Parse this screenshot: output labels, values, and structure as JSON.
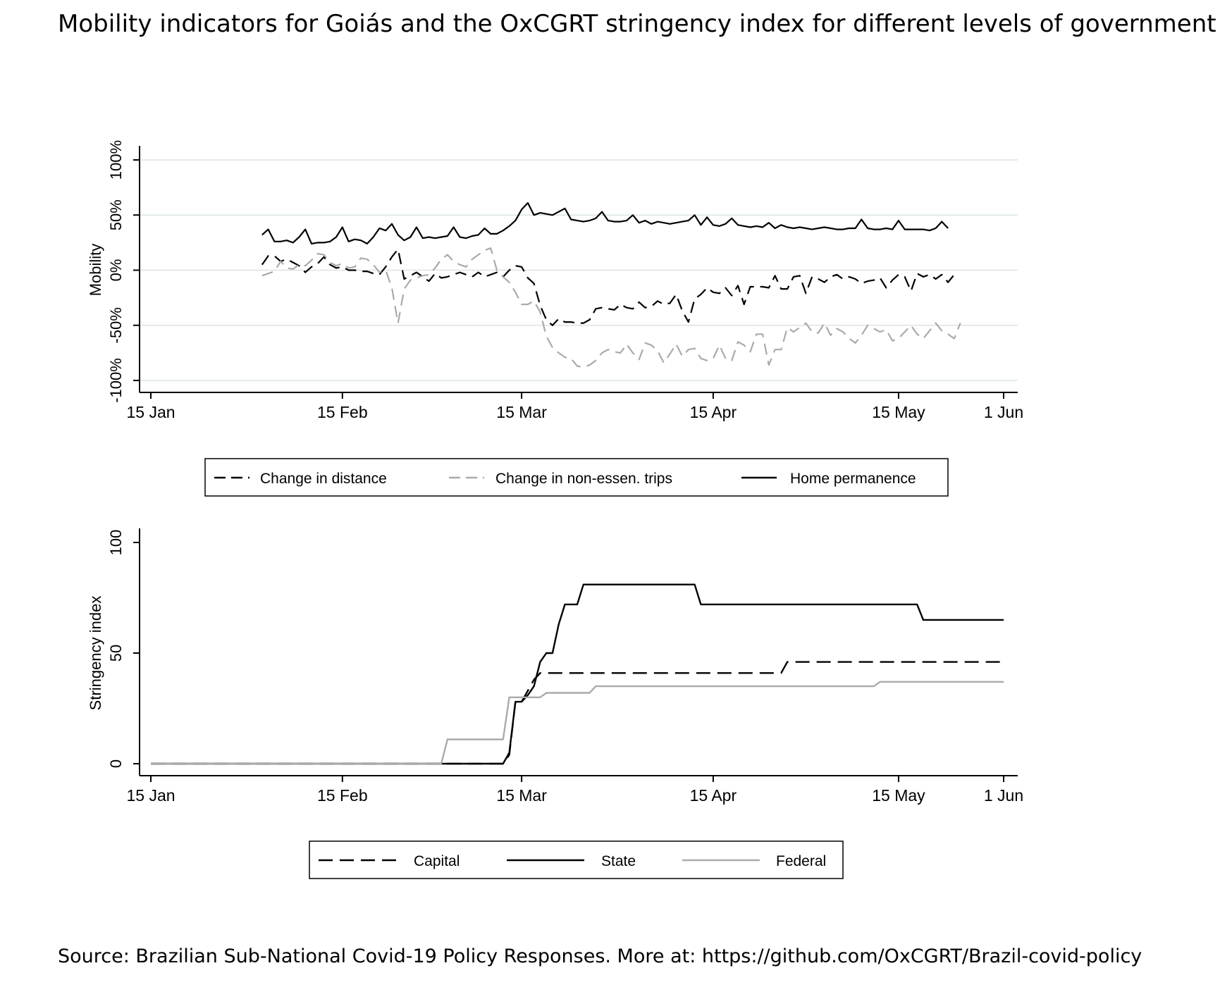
{
  "title": "Mobility indicators for Goiás and the OxCGRT stringency index for different levels of government",
  "source": "Source: Brazilian Sub-National Covid-19 Policy Responses. More at: https://github.com/OxCGRT/Brazil-covid-policy",
  "chart_data": [
    {
      "type": "line",
      "ylabel": "Mobility",
      "ylim": [
        -100,
        100
      ],
      "yticks": [
        -100,
        -50,
        0,
        50,
        100
      ],
      "ytick_labels": [
        "-100%",
        "-50%",
        "0%",
        "50%",
        "100%"
      ],
      "xlim": [
        "2020-01-15",
        "2020-06-01"
      ],
      "xticks": [
        "2020-01-15",
        "2020-02-15",
        "2020-03-15",
        "2020-04-15",
        "2020-05-15",
        "2020-06-01"
      ],
      "xtick_labels": [
        "15 Jan",
        "15 Feb",
        "15 Mar",
        "15 Apr",
        "15 May",
        "1 Jun"
      ],
      "grid": true,
      "legend": "bottom",
      "series": [
        {
          "name": "Change in distance",
          "color": "#000000",
          "style": "dashed",
          "start": "2020-02-02",
          "values": [
            5,
            13,
            13,
            8,
            10,
            7,
            4,
            -2,
            3,
            6,
            12,
            5,
            2,
            3,
            0,
            0,
            -1,
            -1,
            -3,
            -4,
            3,
            12,
            19,
            -8,
            -5,
            -2,
            -6,
            -10,
            -3,
            -7,
            -6,
            -4,
            -2,
            -4,
            -6,
            -2,
            -6,
            -4,
            -2,
            -6,
            0,
            4,
            3,
            -7,
            -12,
            -32,
            -45,
            -50,
            -44,
            -47,
            -47,
            -48,
            -48,
            -45,
            -35,
            -34,
            -35,
            -36,
            -31,
            -34,
            -35,
            -29,
            -34,
            -33,
            -28,
            -31,
            -30,
            -22,
            -37,
            -47,
            -26,
            -22,
            -16,
            -20,
            -21,
            -16,
            -23,
            -14,
            -31,
            -15,
            -15,
            -15,
            -16,
            -5,
            -17,
            -17,
            -6,
            -5,
            -21,
            -6,
            -8,
            -11,
            -6,
            -4,
            -8,
            -6,
            -8,
            -12,
            -10,
            -9,
            -7,
            -16,
            -9,
            -4,
            -6,
            -19,
            -3,
            -6,
            -4,
            -8,
            -4,
            -11,
            -4
          ]
        },
        {
          "name": "Change in non-essen. trips",
          "color": "#aaaaaa",
          "style": "dashed",
          "start": "2020-02-02",
          "values": [
            -5,
            -3,
            -1,
            8,
            2,
            1,
            5,
            4,
            9,
            15,
            14,
            7,
            4,
            6,
            2,
            3,
            11,
            10,
            5,
            -2,
            0,
            -16,
            -48,
            -17,
            -9,
            -7,
            -5,
            -4,
            2,
            10,
            14,
            8,
            5,
            3,
            10,
            14,
            18,
            20,
            0,
            -6,
            -11,
            -20,
            -31,
            -31,
            -28,
            -38,
            -60,
            -70,
            -75,
            -79,
            -80,
            -87,
            -88,
            -86,
            -82,
            -75,
            -72,
            -74,
            -75,
            -67,
            -75,
            -81,
            -66,
            -68,
            -73,
            -84,
            -76,
            -67,
            -78,
            -72,
            -71,
            -80,
            -82,
            -80,
            -68,
            -80,
            -82,
            -65,
            -68,
            -74,
            -58,
            -58,
            -86,
            -72,
            -72,
            -52,
            -56,
            -52,
            -48,
            -56,
            -57,
            -48,
            -59,
            -53,
            -56,
            -62,
            -66,
            -59,
            -50,
            -53,
            -56,
            -54,
            -64,
            -62,
            -56,
            -50,
            -58,
            -62,
            -55,
            -48,
            -55,
            -58,
            -62,
            -48
          ]
        },
        {
          "name": "Home permanence",
          "color": "#000000",
          "style": "solid",
          "start": "2020-02-02",
          "values": [
            32,
            37,
            26,
            26,
            27,
            25,
            30,
            37,
            24,
            25,
            25,
            26,
            30,
            39,
            26,
            28,
            27,
            24,
            30,
            38,
            36,
            42,
            32,
            27,
            30,
            39,
            29,
            30,
            29,
            30,
            31,
            39,
            30,
            29,
            31,
            32,
            38,
            33,
            33,
            36,
            40,
            45,
            55,
            61,
            50,
            52,
            51,
            50,
            53,
            56,
            46,
            45,
            44,
            45,
            47,
            53,
            45,
            44,
            44,
            45,
            50,
            43,
            45,
            42,
            44,
            43,
            42,
            43,
            44,
            45,
            50,
            41,
            48,
            41,
            40,
            42,
            47,
            41,
            40,
            39,
            40,
            39,
            43,
            38,
            41,
            39,
            38,
            39,
            38,
            37,
            38,
            39,
            38,
            37,
            37,
            38,
            38,
            46,
            38,
            37,
            37,
            38,
            37,
            45,
            37,
            37,
            37,
            37,
            36,
            38,
            44,
            38
          ]
        }
      ]
    },
    {
      "type": "line",
      "ylabel": "Stringency index",
      "ylim": [
        0,
        100
      ],
      "yticks": [
        0,
        50,
        100
      ],
      "ytick_labels": [
        "0",
        "50",
        "100"
      ],
      "xlim": [
        "2020-01-15",
        "2020-06-01"
      ],
      "xticks": [
        "2020-01-15",
        "2020-02-15",
        "2020-03-15",
        "2020-04-15",
        "2020-05-15",
        "2020-06-01"
      ],
      "xtick_labels": [
        "15 Jan",
        "15 Feb",
        "15 Mar",
        "15 Apr",
        "15 May",
        "1 Jun"
      ],
      "grid": false,
      "legend": "bottom",
      "series": [
        {
          "name": "Capital",
          "color": "#000000",
          "style": "dashed",
          "points": [
            [
              "2020-01-15",
              0
            ],
            [
              "2020-03-12",
              0
            ],
            [
              "2020-03-13",
              4
            ],
            [
              "2020-03-14",
              28
            ],
            [
              "2020-03-15",
              28
            ],
            [
              "2020-03-16",
              33
            ],
            [
              "2020-03-17",
              38
            ],
            [
              "2020-03-18",
              41
            ],
            [
              "2020-04-26",
              41
            ],
            [
              "2020-04-27",
              46
            ],
            [
              "2020-06-01",
              46
            ]
          ]
        },
        {
          "name": "State",
          "color": "#000000",
          "style": "solid",
          "points": [
            [
              "2020-01-15",
              0
            ],
            [
              "2020-03-12",
              0
            ],
            [
              "2020-03-13",
              5
            ],
            [
              "2020-03-14",
              28
            ],
            [
              "2020-03-15",
              28
            ],
            [
              "2020-03-16",
              31
            ],
            [
              "2020-03-17",
              35
            ],
            [
              "2020-03-18",
              46
            ],
            [
              "2020-03-19",
              50
            ],
            [
              "2020-03-20",
              50
            ],
            [
              "2020-03-21",
              63
            ],
            [
              "2020-03-22",
              72
            ],
            [
              "2020-03-24",
              72
            ],
            [
              "2020-03-25",
              81
            ],
            [
              "2020-04-12",
              81
            ],
            [
              "2020-04-13",
              72
            ],
            [
              "2020-05-18",
              72
            ],
            [
              "2020-05-19",
              65
            ],
            [
              "2020-06-01",
              65
            ]
          ]
        },
        {
          "name": "Federal",
          "color": "#aaaaaa",
          "style": "solid",
          "points": [
            [
              "2020-01-15",
              0
            ],
            [
              "2020-03-02",
              0
            ],
            [
              "2020-03-03",
              11
            ],
            [
              "2020-03-12",
              11
            ],
            [
              "2020-03-13",
              30
            ],
            [
              "2020-03-18",
              30
            ],
            [
              "2020-03-19",
              32
            ],
            [
              "2020-03-26",
              32
            ],
            [
              "2020-03-27",
              35
            ],
            [
              "2020-05-11",
              35
            ],
            [
              "2020-05-12",
              37
            ],
            [
              "2020-06-01",
              37
            ]
          ]
        }
      ]
    }
  ]
}
